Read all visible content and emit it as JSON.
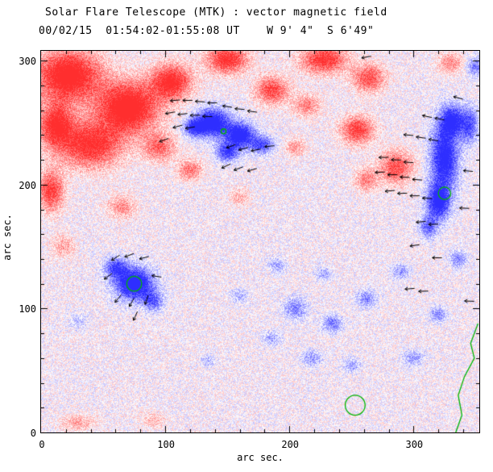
{
  "title": "Solar Flare Telescope (MTK) : vector magnetic field",
  "subtitle": "00/02/15  01:54:02-01:55:08 UT    W 9' 4\"  S 6'49\"",
  "chart_data": {
    "type": "heatmap",
    "title": "Solar Flare Telescope (MTK) : vector magnetic field",
    "subtitle": "00/02/15  01:54:02-01:55:08 UT    W 9' 4\"  S 6'49\"",
    "xlabel": "arc sec.",
    "ylabel": "arc sec.",
    "xlim": [
      0,
      353
    ],
    "ylim": [
      0,
      308
    ],
    "xticks": [
      0,
      100,
      200,
      300
    ],
    "yticks": [
      0,
      100,
      200,
      300
    ],
    "minor_tick_step": 20,
    "grid": false,
    "colors": {
      "positive": "#ff3333",
      "negative": "#3333ff",
      "contour": "#00b400",
      "vector": "#000000",
      "axis": "#000000",
      "background": "#ffffff"
    },
    "noise_amplitude": 0.5,
    "blobs": [
      [
        22,
        288,
        26,
        20,
        1.1
      ],
      [
        70,
        262,
        24,
        20,
        1.15
      ],
      [
        40,
        232,
        24,
        18,
        0.9
      ],
      [
        105,
        283,
        16,
        14,
        0.95
      ],
      [
        95,
        230,
        13,
        11,
        0.6
      ],
      [
        8,
        195,
        10,
        16,
        0.8
      ],
      [
        12,
        248,
        14,
        18,
        0.9
      ],
      [
        150,
        301,
        16,
        11,
        0.9
      ],
      [
        186,
        276,
        13,
        11,
        0.75
      ],
      [
        228,
        301,
        18,
        11,
        0.85
      ],
      [
        214,
        264,
        11,
        9,
        0.5
      ],
      [
        264,
        286,
        13,
        11,
        0.7
      ],
      [
        255,
        244,
        13,
        11,
        0.8
      ],
      [
        286,
        214,
        13,
        13,
        0.7
      ],
      [
        262,
        204,
        9,
        9,
        0.5
      ],
      [
        120,
        212,
        10,
        8,
        0.55
      ],
      [
        65,
        182,
        11,
        9,
        0.45
      ],
      [
        18,
        150,
        9,
        9,
        0.35
      ],
      [
        330,
        298,
        10,
        8,
        0.45
      ],
      [
        30,
        8,
        14,
        6,
        0.35
      ],
      [
        205,
        230,
        8,
        7,
        0.4
      ],
      [
        160,
        190,
        8,
        7,
        0.3
      ],
      [
        90,
        10,
        10,
        6,
        0.25
      ],
      [
        138,
        250,
        13,
        11,
        -1.15
      ],
      [
        160,
        240,
        12,
        10,
        -1.1
      ],
      [
        150,
        226,
        9,
        7,
        -0.8
      ],
      [
        123,
        246,
        8,
        7,
        -0.8
      ],
      [
        178,
        232,
        9,
        7,
        -0.7
      ],
      [
        325,
        222,
        11,
        26,
        -1.05
      ],
      [
        320,
        186,
        9,
        14,
        -1.0
      ],
      [
        331,
        252,
        9,
        12,
        -0.9
      ],
      [
        312,
        166,
        7,
        9,
        -0.6
      ],
      [
        345,
        248,
        7,
        14,
        -0.7
      ],
      [
        336,
        140,
        7,
        7,
        -0.45
      ],
      [
        75,
        120,
        15,
        13,
        -1.15
      ],
      [
        60,
        133,
        9,
        8,
        -0.7
      ],
      [
        90,
        106,
        8,
        8,
        -0.6
      ],
      [
        205,
        100,
        9,
        8,
        -0.5
      ],
      [
        235,
        88,
        8,
        7,
        -0.5
      ],
      [
        262,
        108,
        8,
        7,
        -0.45
      ],
      [
        218,
        60,
        8,
        6,
        -0.4
      ],
      [
        186,
        76,
        7,
        6,
        -0.35
      ],
      [
        250,
        54,
        7,
        6,
        -0.35
      ],
      [
        300,
        60,
        8,
        6,
        -0.4
      ],
      [
        320,
        95,
        7,
        6,
        -0.45
      ],
      [
        290,
        130,
        7,
        6,
        -0.4
      ],
      [
        190,
        135,
        7,
        6,
        -0.35
      ],
      [
        160,
        110,
        7,
        6,
        -0.3
      ],
      [
        350,
        295,
        7,
        8,
        -0.5
      ],
      [
        30,
        90,
        7,
        6,
        -0.25
      ],
      [
        135,
        58,
        6,
        5,
        -0.25
      ],
      [
        228,
        128,
        6,
        5,
        -0.35
      ]
    ],
    "vectors": [
      [
        108,
        268,
        185
      ],
      [
        118,
        268,
        180
      ],
      [
        128,
        267,
        176
      ],
      [
        138,
        266,
        181
      ],
      [
        104,
        258,
        190
      ],
      [
        114,
        257,
        186
      ],
      [
        124,
        256,
        181
      ],
      [
        134,
        255,
        178
      ],
      [
        110,
        247,
        196
      ],
      [
        120,
        246,
        190
      ],
      [
        150,
        263,
        172
      ],
      [
        160,
        261,
        175
      ],
      [
        170,
        259,
        172
      ],
      [
        153,
        231,
        200
      ],
      [
        163,
        229,
        196
      ],
      [
        173,
        228,
        191
      ],
      [
        184,
        231,
        186
      ],
      [
        149,
        215,
        205
      ],
      [
        159,
        213,
        200
      ],
      [
        170,
        212,
        196
      ],
      [
        99,
        236,
        200
      ],
      [
        276,
        222,
        181
      ],
      [
        286,
        220,
        178
      ],
      [
        296,
        218,
        176
      ],
      [
        273,
        210,
        183
      ],
      [
        283,
        208,
        180
      ],
      [
        293,
        206,
        178
      ],
      [
        303,
        204,
        176
      ],
      [
        281,
        195,
        185
      ],
      [
        291,
        193,
        182
      ],
      [
        301,
        191,
        180
      ],
      [
        311,
        189,
        178
      ],
      [
        296,
        240,
        175
      ],
      [
        306,
        238,
        172
      ],
      [
        316,
        236,
        171
      ],
      [
        311,
        255,
        168
      ],
      [
        321,
        253,
        170
      ],
      [
        306,
        170,
        185
      ],
      [
        316,
        168,
        182
      ],
      [
        301,
        151,
        188
      ],
      [
        336,
        270,
        165
      ],
      [
        344,
        211,
        175
      ],
      [
        341,
        181,
        178
      ],
      [
        60,
        141,
        212
      ],
      [
        71,
        143,
        201
      ],
      [
        83,
        141,
        194
      ],
      [
        54,
        126,
        216
      ],
      [
        93,
        126,
        171
      ],
      [
        62,
        108,
        231
      ],
      [
        73,
        105,
        241
      ],
      [
        85,
        107,
        251
      ],
      [
        76,
        94,
        246
      ],
      [
        297,
        116,
        185
      ],
      [
        308,
        114,
        182
      ],
      [
        319,
        141,
        180
      ],
      [
        345,
        106,
        178
      ],
      [
        262,
        303,
        190
      ]
    ],
    "contours": {
      "circles": [
        [
          75,
          120,
          6
        ],
        [
          325,
          193,
          5
        ],
        [
          147,
          243,
          2
        ],
        [
          253,
          22,
          8
        ]
      ],
      "paths": [
        [
          [
            352,
            88
          ],
          [
            346,
            72
          ],
          [
            349,
            60
          ],
          [
            341,
            45
          ],
          [
            336,
            30
          ],
          [
            339,
            14
          ],
          [
            334,
            0
          ]
        ]
      ]
    }
  }
}
